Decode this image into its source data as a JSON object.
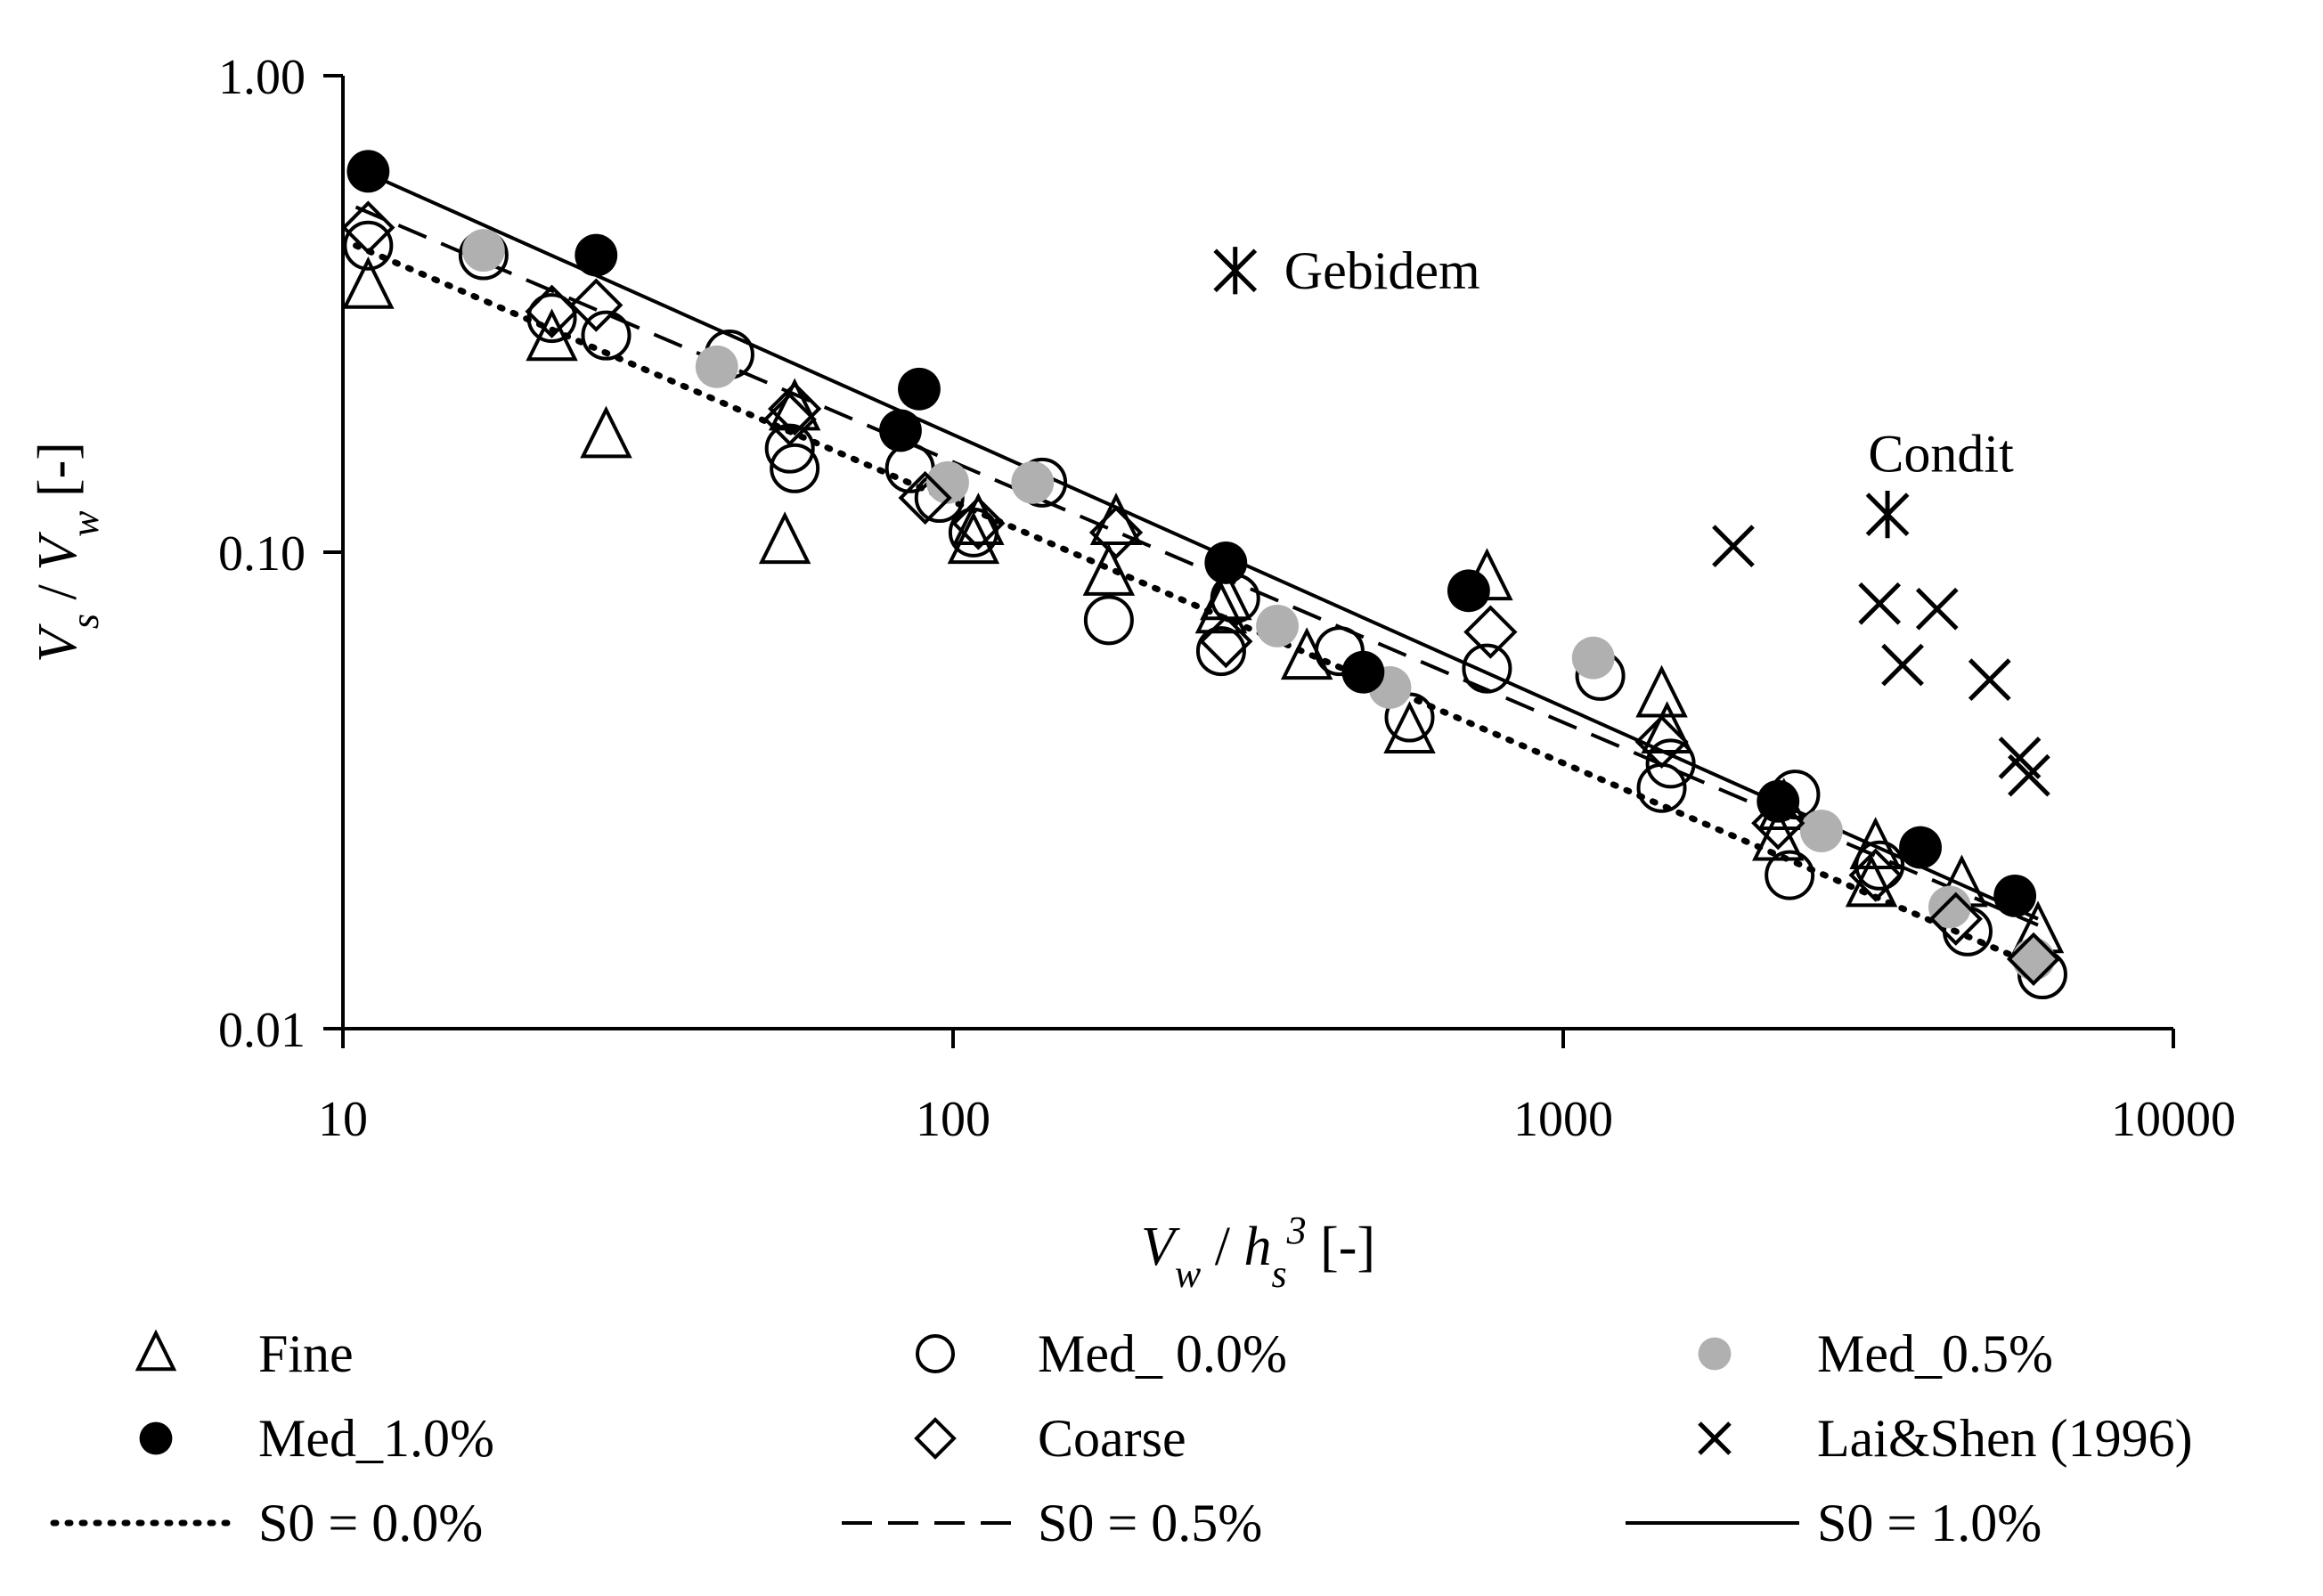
{
  "chart_data": {
    "type": "scatter",
    "xscale": "log",
    "yscale": "log",
    "xlim": [
      10,
      10000
    ],
    "ylim": [
      0.01,
      1.0
    ],
    "x_ticks": [
      10,
      100,
      1000,
      10000
    ],
    "x_tick_labels": [
      "10",
      "100",
      "1000",
      "10000"
    ],
    "y_ticks": [
      0.01,
      0.1,
      1.0
    ],
    "y_tick_labels": [
      "0.01",
      "0.10",
      "1.00"
    ],
    "xlabel": {
      "base": "V",
      "base_sub": "w",
      "mid": " / ",
      "mid_base": "h",
      "mid_sub": "s",
      "mid_sup": "3",
      "unit": " [-]"
    },
    "ylabel": {
      "base": "V",
      "base_sub": "s",
      "mid": " / ",
      "mid_base": "V",
      "mid_sub": "w",
      "unit": " [-]"
    },
    "annotations": [
      {
        "text": "Gebidem",
        "x": 290,
        "y": 0.39,
        "marker": "asterisk"
      },
      {
        "text": "Condit",
        "x": 3400,
        "y": 0.12,
        "marker": "asterisk",
        "label_above": true
      }
    ],
    "series": [
      {
        "name": "Fine",
        "marker": "triangle-open",
        "color": "#000000",
        "points": [
          [
            11,
            0.36
          ],
          [
            22,
            0.28
          ],
          [
            27,
            0.175
          ],
          [
            53,
            0.105
          ],
          [
            55,
            0.2
          ],
          [
            108,
            0.105
          ],
          [
            110,
            0.115
          ],
          [
            180,
            0.09
          ],
          [
            185,
            0.115
          ],
          [
            275,
            0.075
          ],
          [
            280,
            0.08
          ],
          [
            380,
            0.06
          ],
          [
            560,
            0.042
          ],
          [
            750,
            0.088
          ],
          [
            1450,
            0.05
          ],
          [
            1480,
            0.042
          ],
          [
            2250,
            0.025
          ],
          [
            2300,
            0.029
          ],
          [
            3200,
            0.02
          ],
          [
            3250,
            0.024
          ],
          [
            4500,
            0.02
          ],
          [
            6000,
            0.016
          ]
        ]
      },
      {
        "name": "Med_ 0.0%",
        "marker": "circle-open",
        "color": "#000000",
        "points": [
          [
            11,
            0.44
          ],
          [
            17,
            0.42
          ],
          [
            22,
            0.31
          ],
          [
            27,
            0.285
          ],
          [
            43,
            0.26
          ],
          [
            54,
            0.165
          ],
          [
            55,
            0.15
          ],
          [
            85,
            0.15
          ],
          [
            95,
            0.13
          ],
          [
            108,
            0.11
          ],
          [
            140,
            0.14
          ],
          [
            180,
            0.072
          ],
          [
            275,
            0.062
          ],
          [
            290,
            0.08
          ],
          [
            430,
            0.062
          ],
          [
            560,
            0.045
          ],
          [
            750,
            0.057
          ],
          [
            1150,
            0.055
          ],
          [
            1450,
            0.032
          ],
          [
            1500,
            0.036
          ],
          [
            2350,
            0.021
          ],
          [
            2400,
            0.031
          ],
          [
            3300,
            0.022
          ],
          [
            4600,
            0.016
          ],
          [
            6100,
            0.013
          ]
        ]
      },
      {
        "name": "Med_0.5%",
        "marker": "circle-filled",
        "color": "#b0b0b0",
        "points": [
          [
            17,
            0.43
          ],
          [
            41,
            0.245
          ],
          [
            98,
            0.14
          ],
          [
            135,
            0.14
          ],
          [
            340,
            0.07
          ],
          [
            520,
            0.052
          ],
          [
            1120,
            0.06
          ],
          [
            2650,
            0.026
          ],
          [
            4300,
            0.018
          ],
          [
            5900,
            0.014
          ]
        ]
      },
      {
        "name": "Med_1.0%",
        "marker": "circle-filled",
        "color": "#000000",
        "points": [
          [
            11,
            0.63
          ],
          [
            26,
            0.42
          ],
          [
            82,
            0.18
          ],
          [
            88,
            0.22
          ],
          [
            280,
            0.095
          ],
          [
            470,
            0.056
          ],
          [
            700,
            0.083
          ],
          [
            2250,
            0.03
          ],
          [
            3850,
            0.024
          ],
          [
            5500,
            0.019
          ]
        ]
      },
      {
        "name": "Coarse",
        "marker": "diamond-open",
        "color": "#000000",
        "points": [
          [
            11,
            0.48
          ],
          [
            22,
            0.32
          ],
          [
            26,
            0.33
          ],
          [
            54,
            0.19
          ],
          [
            55,
            0.2
          ],
          [
            90,
            0.13
          ],
          [
            110,
            0.115
          ],
          [
            185,
            0.11
          ],
          [
            280,
            0.065
          ],
          [
            760,
            0.068
          ],
          [
            1450,
            0.04
          ],
          [
            2250,
            0.027
          ],
          [
            3250,
            0.021
          ],
          [
            4400,
            0.017
          ],
          [
            5900,
            0.014
          ]
        ]
      },
      {
        "name": "Lai&Shen (1996)",
        "marker": "x",
        "color": "#000000",
        "points": [
          [
            1900,
            0.103
          ],
          [
            3300,
            0.078
          ],
          [
            3600,
            0.058
          ],
          [
            4100,
            0.076
          ],
          [
            5000,
            0.054
          ],
          [
            5600,
            0.037
          ],
          [
            5800,
            0.034
          ]
        ]
      }
    ],
    "lines": [
      {
        "name": "S0 = 0.0%",
        "style": "dotted",
        "x": [
          10.5,
          6000
        ],
        "y": [
          0.44,
          0.0135
        ]
      },
      {
        "name": "S0 = 0.5%",
        "style": "dashed",
        "x": [
          10.5,
          6000
        ],
        "y": [
          0.53,
          0.0165
        ]
      },
      {
        "name": "S0 = 1.0%",
        "style": "solid",
        "x": [
          10.5,
          6000
        ],
        "y": [
          0.64,
          0.017
        ]
      }
    ],
    "legend": {
      "placement": "bottom",
      "entries": [
        "Fine",
        "Med_ 0.0%",
        "Med_0.5%",
        "Med_1.0%",
        "Coarse",
        "Lai&Shen (1996)",
        "S0 = 0.0%",
        "S0 = 0.5%",
        "S0 = 1.0%"
      ]
    }
  }
}
